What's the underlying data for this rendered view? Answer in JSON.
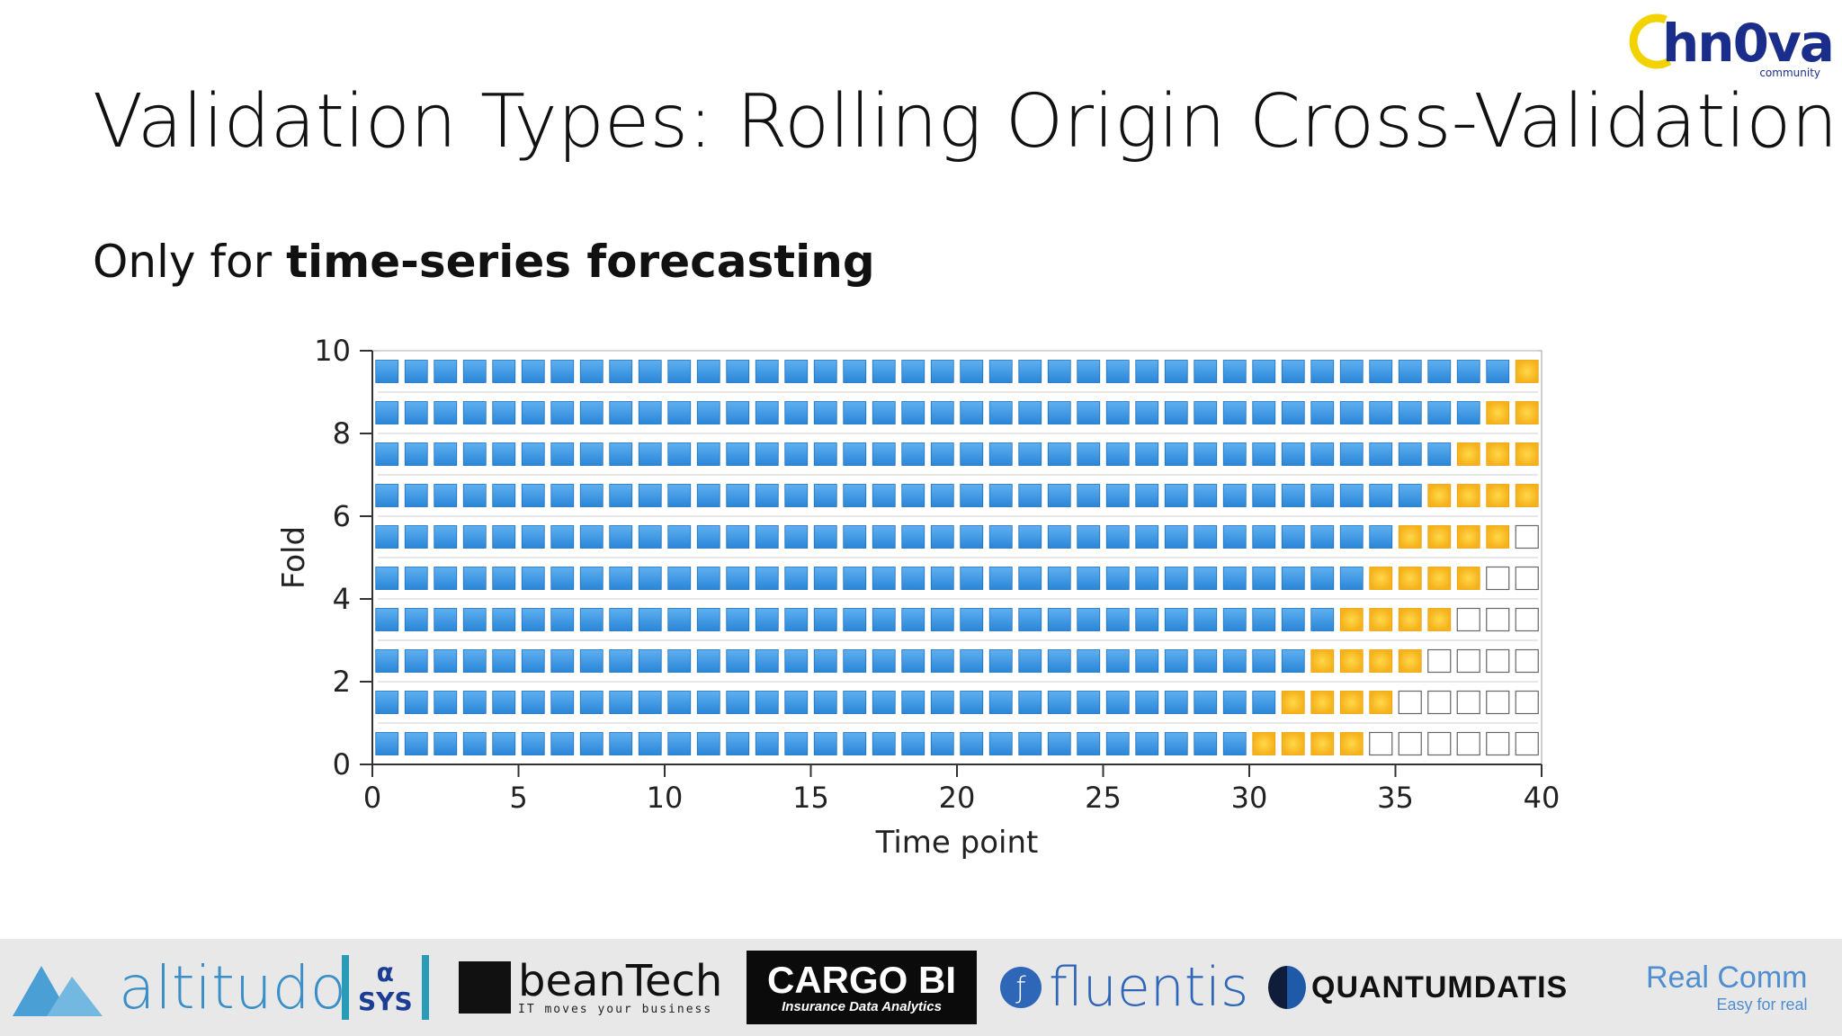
{
  "logo": {
    "name": "hn0va",
    "sub": "community"
  },
  "slide": {
    "title": "Validation Types: Rolling Origin Cross-Validation",
    "subtitle_plain": "Only for ",
    "subtitle_bold": "time-series forecasting"
  },
  "chart_data": {
    "type": "scatter",
    "title": "",
    "xlabel": "Time point",
    "ylabel": "Fold",
    "xlim": [
      0,
      40
    ],
    "ylim": [
      0,
      10
    ],
    "xticks": [
      0,
      5,
      10,
      15,
      20,
      25,
      30,
      35,
      40
    ],
    "yticks": [
      0,
      2,
      4,
      6,
      8,
      10
    ],
    "colors": {
      "train": "#2a86d8",
      "test": "#f6b21b",
      "unused": "#ffffff"
    },
    "grid": false,
    "legend": "none",
    "folds": [
      {
        "fold": 0,
        "train": 30,
        "test": 4,
        "unused": 6
      },
      {
        "fold": 1,
        "train": 31,
        "test": 4,
        "unused": 5
      },
      {
        "fold": 2,
        "train": 32,
        "test": 4,
        "unused": 4
      },
      {
        "fold": 3,
        "train": 33,
        "test": 4,
        "unused": 3
      },
      {
        "fold": 4,
        "train": 34,
        "test": 4,
        "unused": 2
      },
      {
        "fold": 5,
        "train": 35,
        "test": 4,
        "unused": 1
      },
      {
        "fold": 6,
        "train": 36,
        "test": 4,
        "unused": 0
      },
      {
        "fold": 7,
        "train": 37,
        "test": 3,
        "unused": 0
      },
      {
        "fold": 8,
        "train": 38,
        "test": 2,
        "unused": 0
      },
      {
        "fold": 9,
        "train": 39,
        "test": 1,
        "unused": 0
      }
    ]
  },
  "footer": {
    "altitudo": "altitudo",
    "asys_top": "α",
    "asys_bottom": "SYS",
    "beantech": "beanTech",
    "beantech_tag": "IT moves your business",
    "cargo": "CARGO BI",
    "cargo_tag": "Insurance Data Analytics",
    "fluentis": "fluentis",
    "quantum": "QUANTUMDATIS",
    "realcomm": "Real Comm",
    "realcomm_tag": "Easy for real"
  }
}
